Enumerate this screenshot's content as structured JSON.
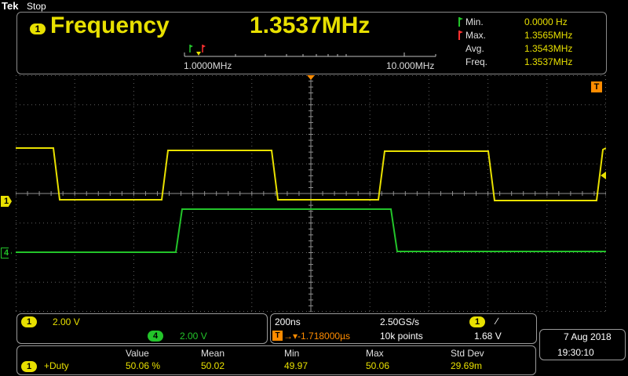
{
  "header": {
    "brand_prefix": "Tek",
    "status": "Stop"
  },
  "frequency": {
    "channel": "1",
    "name": "Frequency",
    "value": "1.3537MHz",
    "scale_low": "1.0000MHz",
    "scale_high": "10.000MHz",
    "stats": [
      {
        "label": "Min.",
        "value": "0.0000 Hz"
      },
      {
        "label": "Max.",
        "value": "1.3565MHz"
      },
      {
        "label": "Avg.",
        "value": "1.3543MHz"
      },
      {
        "label": "Freq.",
        "value": "1.3537MHz"
      }
    ]
  },
  "markers": {
    "ch1": "1",
    "ch4": "4",
    "trigger": "T"
  },
  "vertical": {
    "ch1_badge": "1",
    "ch1_scale": "2.00 V",
    "ch4_badge": "4",
    "ch4_scale": "2.00 V"
  },
  "horizontal": {
    "timebase": "200ns",
    "sample_rate": "2.50GS/s",
    "trig_badge": "1",
    "trig_slope": "∕",
    "trig_label": "T",
    "position": "→▾-1.718000µs",
    "record": "10k points",
    "trig_level": "1.68 V"
  },
  "measurements": {
    "headers": [
      "Value",
      "Mean",
      "Min",
      "Max",
      "Std Dev"
    ],
    "row": {
      "badge": "1",
      "name": "+Duty",
      "values": [
        "50.06 %",
        "50.02",
        "49.97",
        "50.06",
        "29.69m"
      ]
    }
  },
  "datetime": {
    "date": "7 Aug 2018",
    "time": "19:30:10"
  },
  "colors": {
    "ch1": "#e8e000",
    "ch4": "#23c42a",
    "trigger": "#ff8c00"
  }
}
